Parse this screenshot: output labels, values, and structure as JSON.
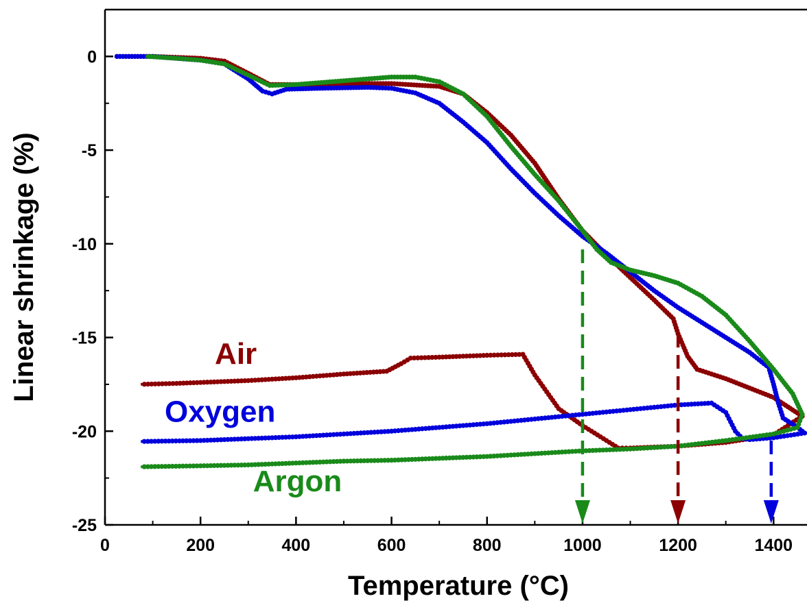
{
  "chart_data": {
    "type": "line",
    "title": "",
    "xlabel": "Temperature (°C)",
    "ylabel": "Linear shrinkage (%)",
    "xlim": [
      0,
      1470
    ],
    "ylim": [
      -25,
      2.5
    ],
    "xticks": [
      0,
      200,
      400,
      600,
      800,
      1000,
      1200,
      1400
    ],
    "yticks": [
      0,
      -5,
      -10,
      -15,
      -20,
      -25
    ],
    "grid": false,
    "legend": "none",
    "series": [
      {
        "name": "Air",
        "color": "#8b0000",
        "label_at": [
          230,
          -16.4
        ],
        "heating": [
          [
            25,
            0
          ],
          [
            100,
            0
          ],
          [
            200,
            -0.1
          ],
          [
            250,
            -0.25
          ],
          [
            300,
            -0.9
          ],
          [
            345,
            -1.5
          ],
          [
            400,
            -1.5
          ],
          [
            500,
            -1.45
          ],
          [
            600,
            -1.45
          ],
          [
            700,
            -1.6
          ],
          [
            750,
            -2.0
          ],
          [
            800,
            -3.0
          ],
          [
            850,
            -4.2
          ],
          [
            900,
            -5.7
          ],
          [
            950,
            -7.6
          ],
          [
            1000,
            -9.3
          ],
          [
            1050,
            -10.6
          ],
          [
            1100,
            -11.8
          ],
          [
            1150,
            -13.0
          ],
          [
            1190,
            -14.0
          ],
          [
            1200,
            -14.8
          ],
          [
            1220,
            -16.0
          ],
          [
            1240,
            -16.7
          ],
          [
            1300,
            -17.2
          ],
          [
            1400,
            -18.2
          ],
          [
            1460,
            -19.2
          ]
        ],
        "cooling": [
          [
            1460,
            -19.2
          ],
          [
            1400,
            -20.2
          ],
          [
            1300,
            -20.6
          ],
          [
            1200,
            -20.8
          ],
          [
            1100,
            -20.9
          ],
          [
            1075,
            -20.9
          ],
          [
            1000,
            -19.7
          ],
          [
            950,
            -18.8
          ],
          [
            900,
            -17.0
          ],
          [
            875,
            -15.9
          ],
          [
            800,
            -15.95
          ],
          [
            700,
            -16.05
          ],
          [
            640,
            -16.1
          ],
          [
            620,
            -16.4
          ],
          [
            590,
            -16.8
          ],
          [
            500,
            -16.95
          ],
          [
            400,
            -17.15
          ],
          [
            300,
            -17.3
          ],
          [
            200,
            -17.4
          ],
          [
            150,
            -17.45
          ],
          [
            75,
            -17.5
          ]
        ],
        "marker": {
          "temperature": 1200,
          "from": -14.8
        }
      },
      {
        "name": "Oxygen",
        "color": "#0000dd",
        "label_at": [
          125,
          -19.5
        ],
        "heating": [
          [
            25,
            0
          ],
          [
            100,
            0
          ],
          [
            200,
            -0.2
          ],
          [
            250,
            -0.4
          ],
          [
            300,
            -1.2
          ],
          [
            330,
            -1.85
          ],
          [
            350,
            -2.0
          ],
          [
            380,
            -1.75
          ],
          [
            450,
            -1.7
          ],
          [
            550,
            -1.65
          ],
          [
            600,
            -1.7
          ],
          [
            650,
            -1.95
          ],
          [
            700,
            -2.5
          ],
          [
            750,
            -3.5
          ],
          [
            800,
            -4.6
          ],
          [
            850,
            -6.0
          ],
          [
            900,
            -7.3
          ],
          [
            950,
            -8.5
          ],
          [
            1000,
            -9.6
          ],
          [
            1050,
            -10.5
          ],
          [
            1100,
            -11.5
          ],
          [
            1150,
            -12.5
          ],
          [
            1200,
            -13.4
          ],
          [
            1250,
            -14.2
          ],
          [
            1300,
            -15.0
          ],
          [
            1350,
            -15.8
          ],
          [
            1390,
            -16.6
          ],
          [
            1400,
            -17.5
          ],
          [
            1410,
            -18.5
          ],
          [
            1420,
            -19.3
          ],
          [
            1450,
            -19.8
          ],
          [
            1465,
            -20.1
          ]
        ],
        "cooling": [
          [
            1465,
            -20.1
          ],
          [
            1400,
            -20.35
          ],
          [
            1350,
            -20.45
          ],
          [
            1335,
            -20.4
          ],
          [
            1320,
            -20.0
          ],
          [
            1300,
            -19.0
          ],
          [
            1270,
            -18.5
          ],
          [
            1200,
            -18.6
          ],
          [
            1100,
            -18.85
          ],
          [
            1000,
            -19.1
          ],
          [
            900,
            -19.35
          ],
          [
            800,
            -19.6
          ],
          [
            700,
            -19.8
          ],
          [
            600,
            -20.0
          ],
          [
            500,
            -20.15
          ],
          [
            400,
            -20.3
          ],
          [
            300,
            -20.4
          ],
          [
            200,
            -20.5
          ],
          [
            75,
            -20.55
          ]
        ],
        "marker": {
          "temperature": 1395,
          "from": -20.5
        }
      },
      {
        "name": "Argon",
        "color": "#1a8a1a",
        "label_at": [
          310,
          -23.2
        ],
        "heating": [
          [
            90,
            0
          ],
          [
            150,
            -0.1
          ],
          [
            200,
            -0.2
          ],
          [
            250,
            -0.4
          ],
          [
            300,
            -1.0
          ],
          [
            345,
            -1.55
          ],
          [
            400,
            -1.5
          ],
          [
            500,
            -1.3
          ],
          [
            600,
            -1.1
          ],
          [
            650,
            -1.1
          ],
          [
            700,
            -1.35
          ],
          [
            750,
            -2.0
          ],
          [
            800,
            -3.2
          ],
          [
            850,
            -4.8
          ],
          [
            900,
            -6.3
          ],
          [
            950,
            -7.7
          ],
          [
            1000,
            -9.3
          ],
          [
            1030,
            -10.3
          ],
          [
            1060,
            -11.0
          ],
          [
            1100,
            -11.4
          ],
          [
            1150,
            -11.7
          ],
          [
            1200,
            -12.1
          ],
          [
            1250,
            -12.8
          ],
          [
            1300,
            -13.8
          ],
          [
            1350,
            -15.2
          ],
          [
            1400,
            -16.7
          ],
          [
            1440,
            -18.0
          ],
          [
            1460,
            -19.1
          ]
        ],
        "cooling": [
          [
            1460,
            -19.1
          ],
          [
            1450,
            -19.8
          ],
          [
            1400,
            -20.15
          ],
          [
            1300,
            -20.5
          ],
          [
            1200,
            -20.8
          ],
          [
            1100,
            -20.95
          ],
          [
            1000,
            -21.05
          ],
          [
            900,
            -21.2
          ],
          [
            800,
            -21.35
          ],
          [
            700,
            -21.45
          ],
          [
            600,
            -21.55
          ],
          [
            500,
            -21.6
          ],
          [
            400,
            -21.7
          ],
          [
            300,
            -21.8
          ],
          [
            200,
            -21.85
          ],
          [
            75,
            -21.9
          ]
        ],
        "marker": {
          "temperature": 1000,
          "from": -10.3
        }
      }
    ]
  }
}
